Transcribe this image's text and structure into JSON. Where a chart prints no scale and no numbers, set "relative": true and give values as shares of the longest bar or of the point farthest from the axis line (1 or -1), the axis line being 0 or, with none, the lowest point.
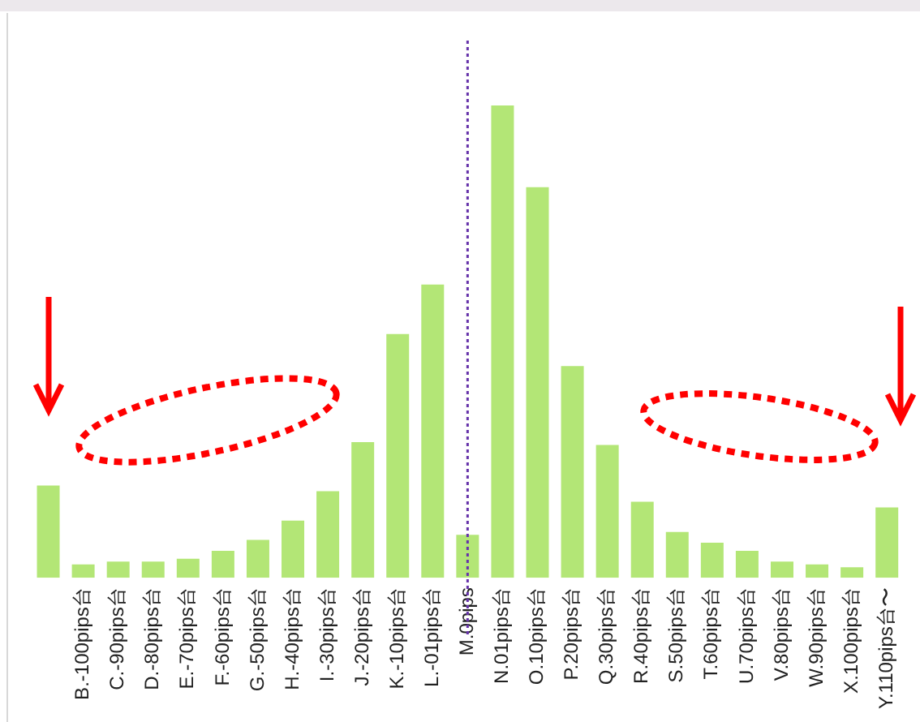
{
  "chart_data": {
    "type": "bar",
    "relative": true,
    "grid": false,
    "legend": false,
    "color": "#b3e676",
    "categories": [
      null,
      "B.-100pips台",
      "C.-90pips台",
      "D.-80pips台",
      "E.-70pips台",
      "F.-60pips台",
      "G.-50pips台",
      "H.-40pips台",
      "I.-30pips台",
      "J.-20pips台",
      "K.-10pips台",
      "L.-01pips台",
      "M.0pips",
      "N.01pips台",
      "O.10pips台",
      "P.20pips台",
      "Q.30pips台",
      "R.40pips台",
      "S.50pips台",
      "T.60pips台",
      "U.70pips台",
      "V.80pips台",
      "W.90pips台",
      "X.100pips台",
      "Y.110pips台〜"
    ],
    "values": [
      0.195,
      0.028,
      0.034,
      0.034,
      0.04,
      0.057,
      0.08,
      0.121,
      0.183,
      0.287,
      0.516,
      0.621,
      0.091,
      1,
      0.827,
      0.448,
      0.281,
      0.161,
      0.097,
      0.074,
      0.057,
      0.034,
      0.028,
      0.022,
      0.149
    ],
    "ref_lines": [
      {
        "axis": "x",
        "value": "M.0pips",
        "color": "#6633aa",
        "line_style": "dotted"
      }
    ]
  }
}
